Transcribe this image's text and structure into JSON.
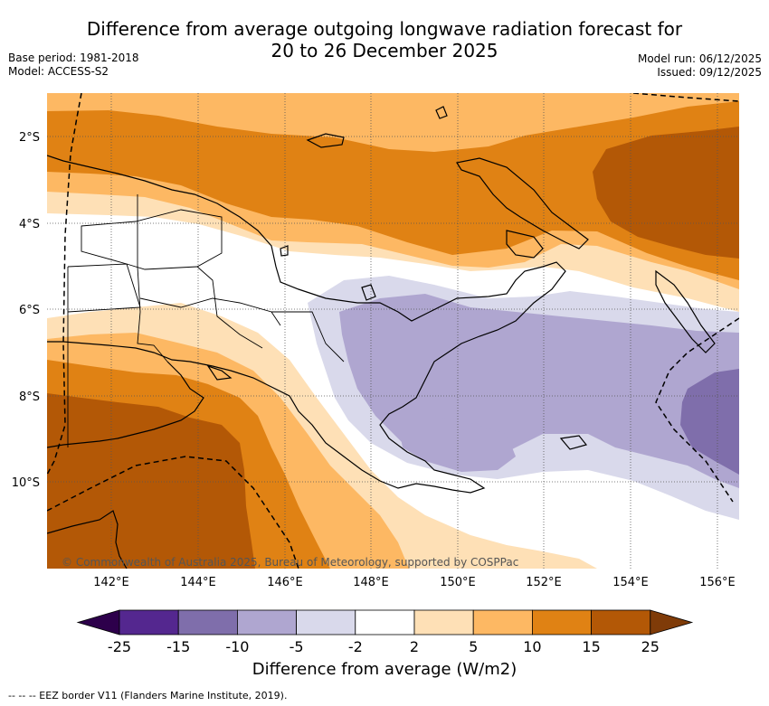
{
  "title": {
    "line1": "Difference from average outgoing longwave radiation forecast for",
    "line2": "20 to 26 December 2025"
  },
  "meta": {
    "base_period": "Base period: 1981-2018",
    "model": "Model: ACCESS-S2",
    "model_run": "Model run: 06/12/2025",
    "issued": "Issued: 09/12/2025"
  },
  "map": {
    "lat_labels": [
      "2°S",
      "4°S",
      "6°S",
      "8°S",
      "10°S"
    ],
    "lon_labels": [
      "142°E",
      "144°E",
      "146°E",
      "148°E",
      "150°E",
      "152°E",
      "154°E",
      "156°E"
    ],
    "copyright": "© Commonwealth of Australia 2025, Bureau of Meteorology, supported by COSPPac"
  },
  "colorbar": {
    "ticks": [
      "-25",
      "-15",
      "-10",
      "-5",
      "-2",
      "2",
      "5",
      "10",
      "15",
      "25"
    ],
    "colors": [
      "#54278f",
      "#7f6eab",
      "#afa6d0",
      "#d9d9eb",
      "#ffffff",
      "#fee0b6",
      "#fdb863",
      "#e08214",
      "#b35806"
    ],
    "under_color": "#2d004b",
    "over_color": "#7f3b08",
    "title": "Difference from average (W/m2)"
  },
  "footnote": "--  --  -- EEZ border V11 (Flanders Marine Institute, 2019)."
}
